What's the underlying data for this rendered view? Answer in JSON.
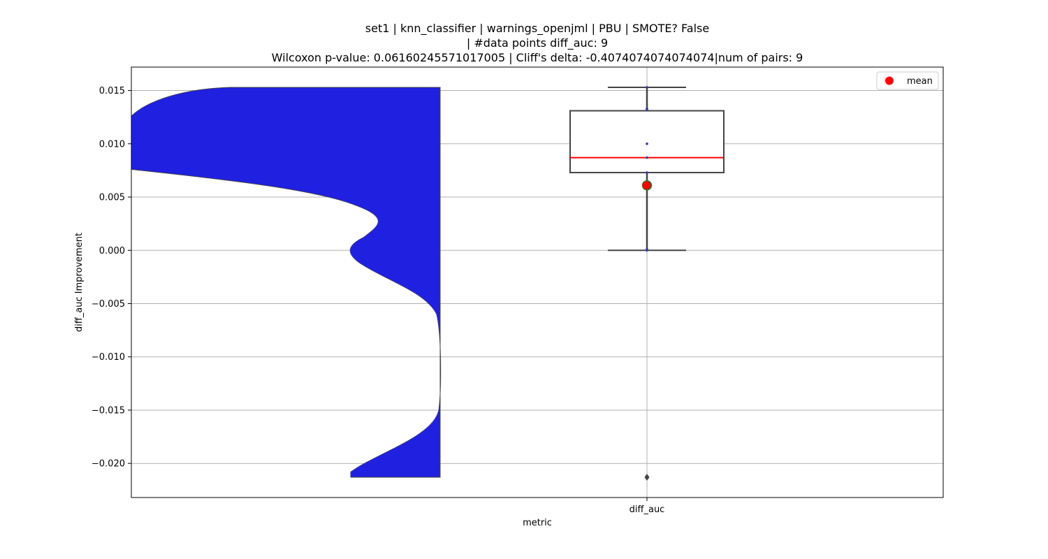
{
  "chart_data": {
    "type": "violin+box",
    "title_lines": [
      "set1 | knn_classifier | warnings_openjml | PBU | SMOTE? False",
      "| #data points diff_auc: 9",
      "Wilcoxon p-value: 0.06160245571017005 | Cliff's delta: -0.4074074074074074|num of pairs: 9"
    ],
    "xlabel": "metric",
    "ylabel": "diff_auc Improvement",
    "categories": [
      "diff_auc"
    ],
    "ylim": [
      -0.0232,
      0.0172
    ],
    "yticks": [
      0.015,
      0.01,
      0.005,
      0.0,
      -0.005,
      -0.01,
      -0.015,
      -0.02
    ],
    "ytick_labels": [
      "0.015",
      "0.010",
      "0.005",
      "0.000",
      "−0.005",
      "−0.010",
      "−0.015",
      "−0.020"
    ],
    "grid": true,
    "legend": {
      "placement": "top-right",
      "entries": [
        {
          "label": "mean",
          "color": "#ff0000",
          "marker": "circle"
        }
      ]
    },
    "box": {
      "category": "diff_auc",
      "whisker_low": 0.0,
      "q1": 0.0073,
      "median": 0.0087,
      "q3": 0.0131,
      "whisker_high": 0.0153,
      "mean": 0.0061,
      "outliers": [
        -0.0213
      ],
      "points": [
        0.0153,
        0.0133,
        0.0132,
        0.01,
        0.0087,
        0.0073,
        0.006,
        0.0001,
        0.0
      ]
    },
    "violin": {
      "color": "#2020e0",
      "edge_color": "#444444",
      "y_range": [
        -0.0213,
        0.0153
      ],
      "density_profile": [
        [
          -0.0213,
          0.0205
        ],
        [
          -0.02,
          0.022
        ],
        [
          -0.018,
          0.027
        ],
        [
          -0.017,
          0.031
        ],
        [
          -0.016,
          0.0325
        ],
        [
          -0.015,
          0.033
        ],
        [
          -0.012,
          0.033
        ],
        [
          -0.009,
          0.033
        ],
        [
          -0.007,
          0.033
        ],
        [
          -0.005,
          0.032
        ],
        [
          -0.004,
          0.03
        ],
        [
          -0.003,
          0.027
        ],
        [
          -0.002,
          0.024
        ],
        [
          -0.001,
          0.0215
        ],
        [
          0.0,
          0.0205
        ],
        [
          0.001,
          0.0215
        ],
        [
          0.002,
          0.0235
        ],
        [
          0.003,
          0.0245
        ],
        [
          0.004,
          0.023
        ],
        [
          0.005,
          0.017
        ],
        [
          0.006,
          0.01
        ],
        [
          0.007,
          0.004
        ],
        [
          0.0076,
          0.0
        ]
      ],
      "upper_profile": [
        [
          0.0076,
          0.0
        ],
        [
          0.01,
          -0.003
        ],
        [
          0.0125,
          0.0
        ],
        [
          0.0135,
          0.004
        ],
        [
          0.0145,
          0.008
        ],
        [
          0.015,
          0.011
        ],
        [
          0.0153,
          0.0135
        ]
      ]
    },
    "colors": {
      "box_edge": "#444444",
      "median": "#ff0000",
      "mean": "#ff0000",
      "mean_edge": "#2a7a2a",
      "point": "#3a3aa0",
      "grid": "#b0b0b0"
    }
  }
}
